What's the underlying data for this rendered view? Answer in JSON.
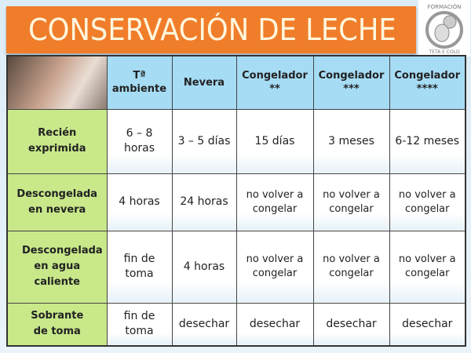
{
  "title": "CONSERVACIÓN DE LECHE",
  "logo": {
    "text": "FORMACIÓN TETA E COLO"
  },
  "table": {
    "columns": [
      "Tª ambiente",
      "Nevera",
      "Congelador **",
      "Congelador ***",
      "Congelador ****"
    ],
    "column_lines": [
      [
        "Tª",
        "ambiente"
      ],
      [
        "Nevera"
      ],
      [
        "Congelador",
        "**"
      ],
      [
        "Congelador",
        "***"
      ],
      [
        "Congelador",
        "****"
      ]
    ],
    "rows": [
      {
        "label": "Recién exprimida",
        "cells": [
          "6 – 8 horas",
          "3 – 5 días",
          "15 días",
          "3 meses",
          "6-12 meses"
        ]
      },
      {
        "label": "Descongelada en nevera",
        "cells": [
          "4 horas",
          "24 horas",
          "no volver a congelar",
          "no volver a congelar",
          "no volver a congelar"
        ]
      },
      {
        "label": "Descongelada en agua caliente",
        "cells": [
          "fin de toma",
          "4 horas",
          "no volver a congelar",
          "no volver a congelar",
          "no volver a congelar"
        ]
      },
      {
        "label": "Sobrante de toma",
        "cells": [
          "fin de toma",
          "desechar",
          "desechar",
          "desechar",
          "desechar"
        ]
      }
    ]
  },
  "colors": {
    "banner": "#f07d2a",
    "header": "#a6dcf4",
    "row_header": "#c8e88a"
  }
}
